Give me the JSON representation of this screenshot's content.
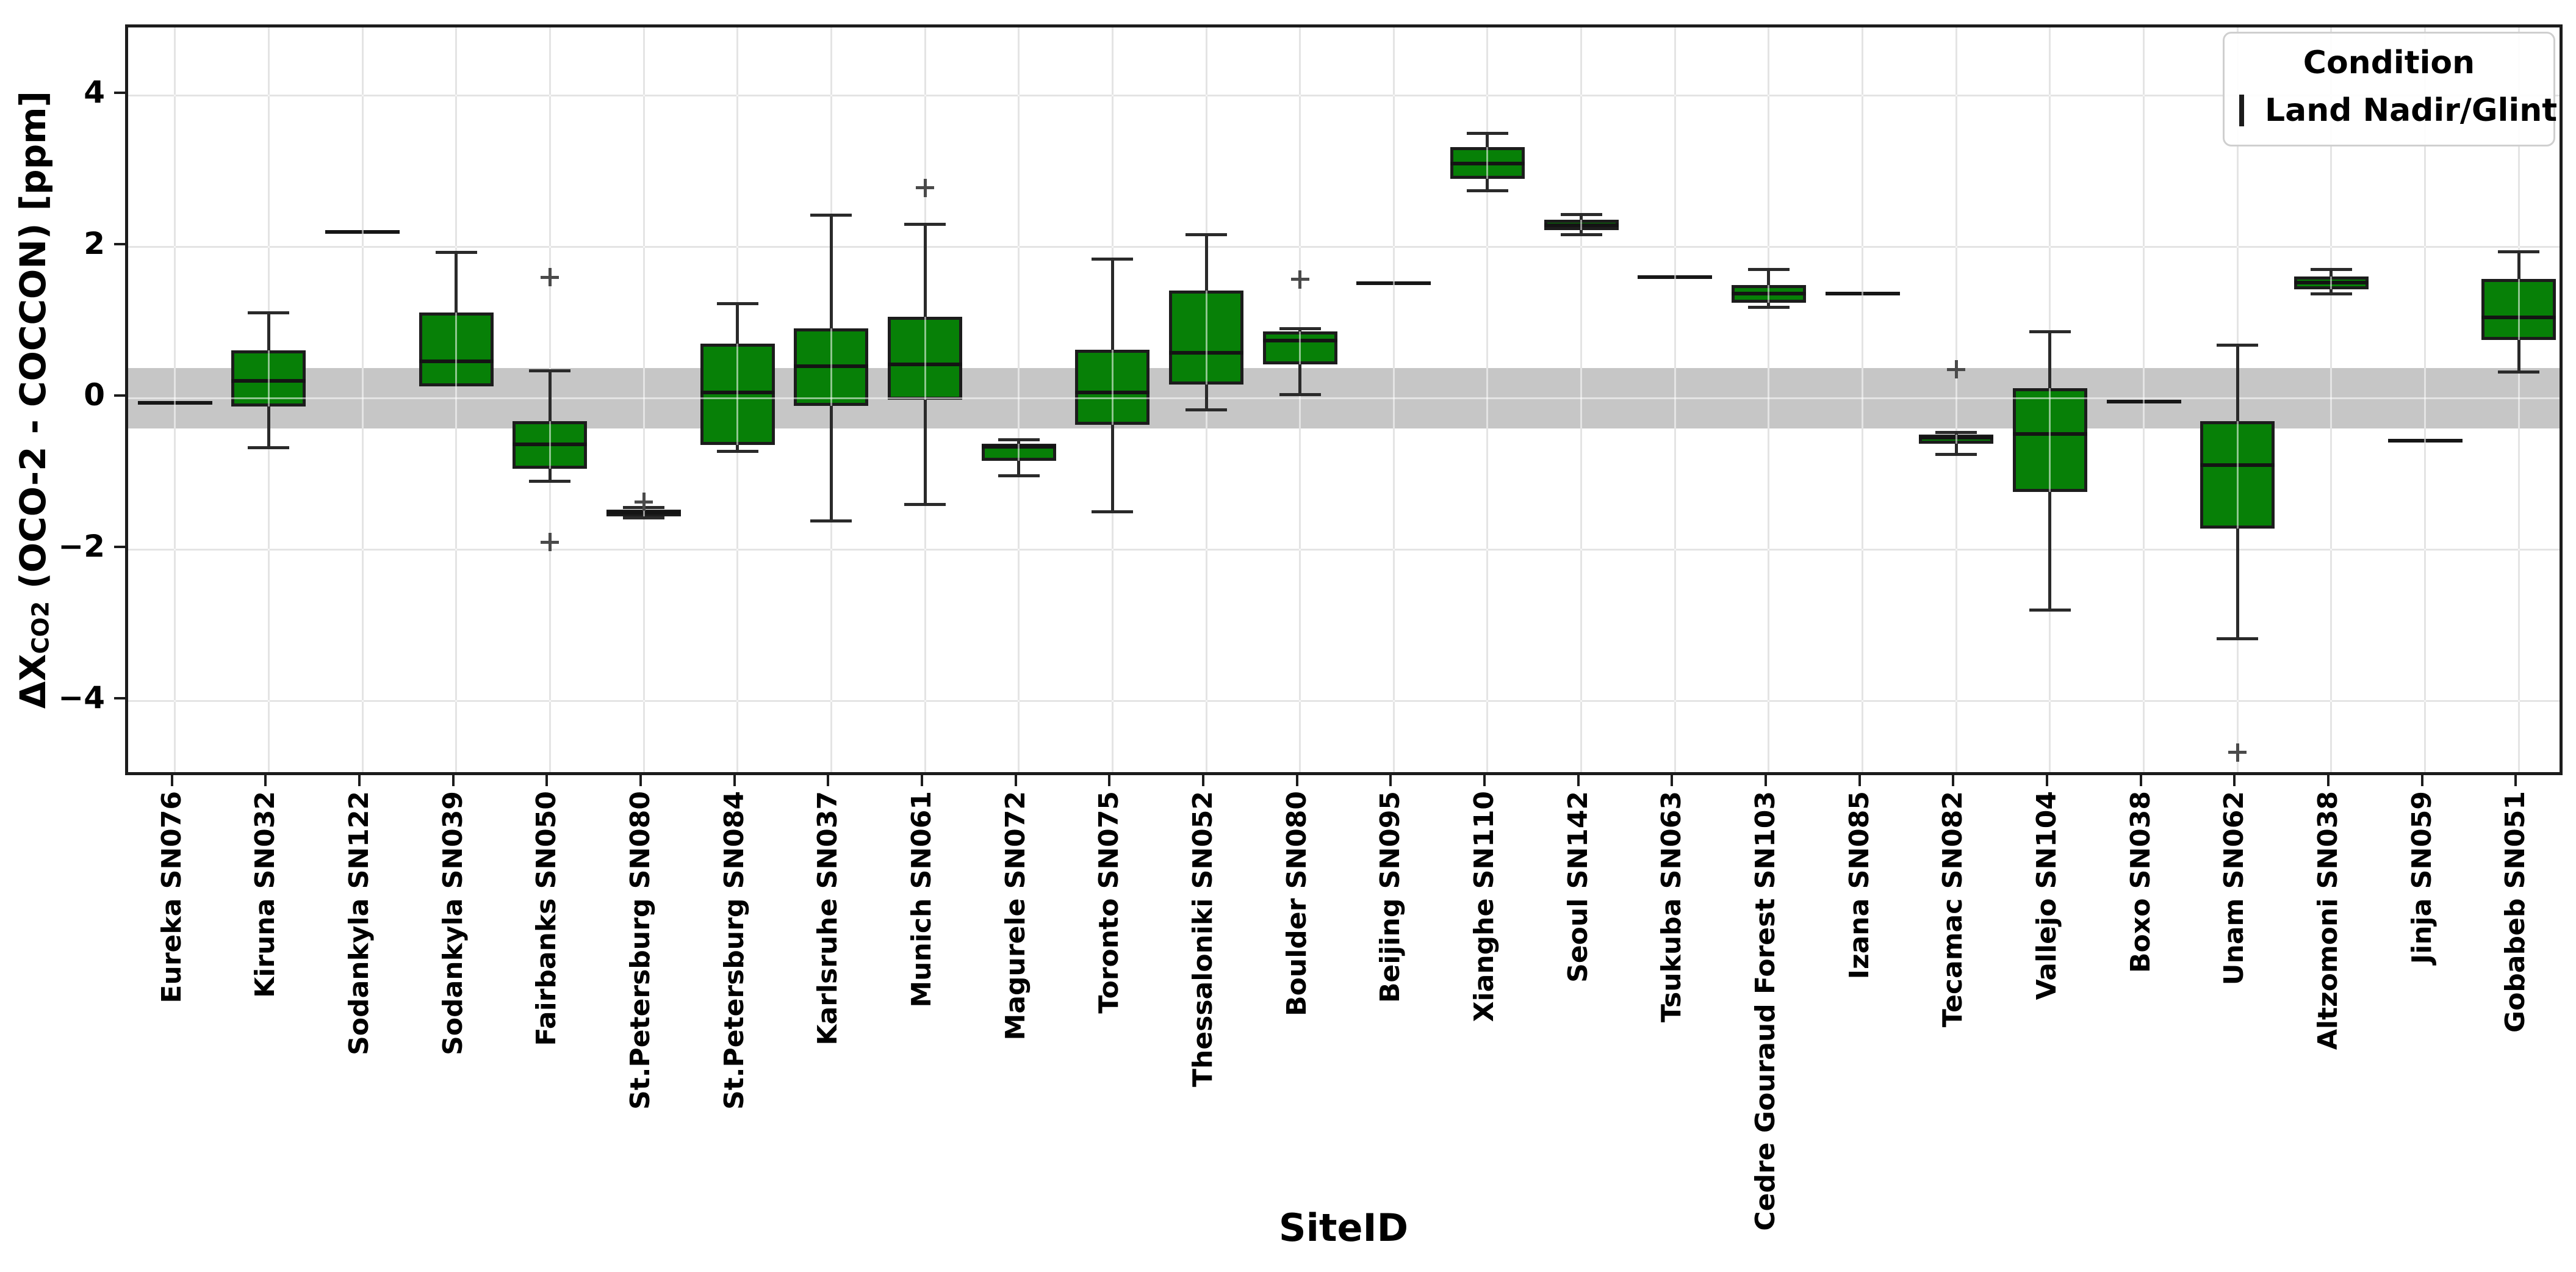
{
  "chart_data": {
    "type": "boxplot",
    "title": "",
    "xlabel": "SiteID",
    "ylabel": "ΔX_CO2 (OCO-2 - COCCON) [ppm]",
    "ylabel_parts": {
      "prefix": "ΔX",
      "sub": "CO2",
      "suffix": " (OCO-2 - COCCON) [ppm]"
    },
    "ylabel_unit": "ppm",
    "ylim": [
      -5.02,
      4.9
    ],
    "yticks": [
      {
        "value": 4,
        "label": "4"
      },
      {
        "value": 2,
        "label": "2"
      },
      {
        "value": 0,
        "label": "0"
      },
      {
        "value": -2,
        "label": "−2"
      },
      {
        "value": -4,
        "label": "−4"
      }
    ],
    "grid": true,
    "reference_band": {
      "from": -0.4,
      "to": 0.4
    },
    "legend": {
      "title": "Condition",
      "label": "Land Nadir/Glint",
      "position": "upper right"
    },
    "categories": [
      "Eureka SN076",
      "Kiruna SN032",
      "Sodankyla SN122",
      "Sodankyla SN039",
      "Fairbanks SN050",
      "St.Petersburg SN080",
      "St.Petersburg SN084",
      "Karlsruhe SN037",
      "Munich SN061",
      "Magurele SN072",
      "Toronto SN075",
      "Thessaloniki SN052",
      "Boulder SN080",
      "Beijing SN095",
      "Xianghe SN110",
      "Seoul SN142",
      "Tsukuba SN063",
      "Cedre Gouraud Forest SN103",
      "Izana SN085",
      "Tecamac SN082",
      "Vallejo SN104",
      "Boxo SN038",
      "Unam SN062",
      "Altzomoni SN038",
      "Jinja SN059",
      "Gobabeb SN051"
    ],
    "stats": [
      {
        "label": "Eureka SN076",
        "whislo": -0.06,
        "q1": -0.06,
        "med": -0.06,
        "q3": -0.06,
        "whishi": -0.06,
        "outliers": []
      },
      {
        "label": "Kiruna SN032",
        "whislo": -0.65,
        "q1": -0.11,
        "med": 0.23,
        "q3": 0.63,
        "whishi": 1.13,
        "outliers": []
      },
      {
        "label": "Sodankyla SN122",
        "whislo": 2.2,
        "q1": 2.2,
        "med": 2.2,
        "q3": 2.2,
        "whishi": 2.2,
        "outliers": []
      },
      {
        "label": "Sodankyla SN039",
        "whislo": 0.16,
        "q1": 0.16,
        "med": 0.49,
        "q3": 1.13,
        "whishi": 1.93,
        "outliers": []
      },
      {
        "label": "Fairbanks SN050",
        "whislo": -1.1,
        "q1": -0.93,
        "med": -0.61,
        "q3": -0.3,
        "whishi": 0.36,
        "outliers": [
          1.6,
          -1.9
        ]
      },
      {
        "label": "St.Petersburg SN080",
        "whislo": -1.58,
        "q1": -1.56,
        "med": -1.51,
        "q3": -1.47,
        "whishi": -1.44,
        "outliers": [
          -1.37
        ]
      },
      {
        "label": "St.Petersburg SN084",
        "whislo": -0.7,
        "q1": -0.62,
        "med": 0.08,
        "q3": 0.72,
        "whishi": 1.25,
        "outliers": []
      },
      {
        "label": "Karlsruhe SN037",
        "whislo": -1.62,
        "q1": -0.1,
        "med": 0.42,
        "q3": 0.92,
        "whishi": 2.42,
        "outliers": []
      },
      {
        "label": "Munich SN061",
        "whislo": -1.4,
        "q1": -0.02,
        "med": 0.45,
        "q3": 1.08,
        "whishi": 2.3,
        "outliers": [
          2.78
        ]
      },
      {
        "label": "Magurele SN072",
        "whislo": -1.02,
        "q1": -0.83,
        "med": -0.64,
        "q3": -0.6,
        "whishi": -0.55,
        "outliers": []
      },
      {
        "label": "Toronto SN075",
        "whislo": -1.5,
        "q1": -0.35,
        "med": 0.08,
        "q3": 0.64,
        "whishi": 1.84,
        "outliers": []
      },
      {
        "label": "Thessaloniki SN052",
        "whislo": -0.15,
        "q1": 0.18,
        "med": 0.6,
        "q3": 1.42,
        "whishi": 2.16,
        "outliers": []
      },
      {
        "label": "Boulder SN080",
        "whislo": 0.05,
        "q1": 0.45,
        "med": 0.76,
        "q3": 0.88,
        "whishi": 0.92,
        "outliers": [
          1.57
        ]
      },
      {
        "label": "Beijing SN095",
        "whislo": 1.52,
        "q1": 1.52,
        "med": 1.52,
        "q3": 1.52,
        "whishi": 1.52,
        "outliers": []
      },
      {
        "label": "Xianghe SN110",
        "whislo": 2.74,
        "q1": 2.9,
        "med": 3.1,
        "q3": 3.32,
        "whishi": 3.5,
        "outliers": []
      },
      {
        "label": "Seoul SN142",
        "whislo": 2.16,
        "q1": 2.22,
        "med": 2.29,
        "q3": 2.36,
        "whishi": 2.43,
        "outliers": []
      },
      {
        "label": "Tsukuba SN063",
        "whislo": 1.6,
        "q1": 1.6,
        "med": 1.6,
        "q3": 1.6,
        "whishi": 1.6,
        "outliers": []
      },
      {
        "label": "Cedre Gouraud Forest SN103",
        "whislo": 1.2,
        "q1": 1.26,
        "med": 1.38,
        "q3": 1.5,
        "whishi": 1.7,
        "outliers": []
      },
      {
        "label": "Izana SN085",
        "whislo": 1.38,
        "q1": 1.38,
        "med": 1.38,
        "q3": 1.38,
        "whishi": 1.38,
        "outliers": []
      },
      {
        "label": "Tecamac SN082",
        "whislo": -0.74,
        "q1": -0.6,
        "med": -0.52,
        "q3": -0.48,
        "whishi": -0.45,
        "outliers": [
          0.38
        ]
      },
      {
        "label": "Vallejo SN104",
        "whislo": -2.8,
        "q1": -1.24,
        "med": -0.47,
        "q3": 0.13,
        "whishi": 0.88,
        "outliers": []
      },
      {
        "label": "Boxo SN038",
        "whislo": -0.04,
        "q1": -0.04,
        "med": -0.04,
        "q3": -0.04,
        "whishi": -0.04,
        "outliers": []
      },
      {
        "label": "Unam SN062",
        "whislo": -3.18,
        "q1": -1.72,
        "med": -0.88,
        "q3": -0.3,
        "whishi": 0.7,
        "outliers": [
          -4.68
        ]
      },
      {
        "label": "Altzomoni SN038",
        "whislo": 1.38,
        "q1": 1.44,
        "med": 1.53,
        "q3": 1.61,
        "whishi": 1.7,
        "outliers": []
      },
      {
        "label": "Jinja SN059",
        "whislo": -0.56,
        "q1": -0.56,
        "med": -0.56,
        "q3": -0.56,
        "whishi": -0.56,
        "outliers": []
      },
      {
        "label": "Gobabeb SN051",
        "whislo": 0.35,
        "q1": 0.77,
        "med": 1.07,
        "q3": 1.58,
        "whishi": 1.94,
        "outliers": []
      }
    ],
    "colors": {
      "box_fill": "#078007",
      "box_edge": "#1c1c1c",
      "median": "#141414",
      "whisker": "#2a2a2a",
      "outlier": "#4a4a4a",
      "grid": "#c3c3c3",
      "band": "#c6c6c6",
      "text": "#000000"
    }
  }
}
